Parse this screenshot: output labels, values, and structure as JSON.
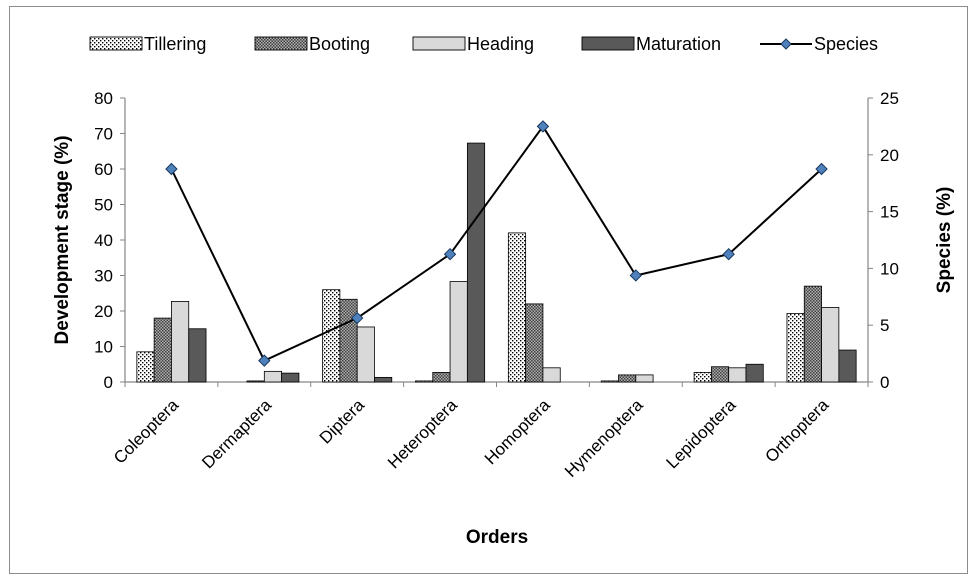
{
  "chart_data": {
    "type": "bar",
    "categories": [
      "Coleoptera",
      "Dermaptera",
      "Diptera",
      "Heteroptera",
      "Homoptera",
      "Hymenoptera",
      "Lepidoptera",
      "Orthoptera"
    ],
    "series": [
      {
        "name": "Tillering",
        "values": [
          8.5,
          0,
          26,
          0.3,
          42,
          0.3,
          2.7,
          19.3
        ],
        "fill": "dots",
        "color": "#ffffff"
      },
      {
        "name": "Booting",
        "values": [
          18,
          0.3,
          23.3,
          2.7,
          22,
          2,
          4.3,
          27
        ],
        "fill": "checker",
        "color": "#808080"
      },
      {
        "name": "Heading",
        "values": [
          22.7,
          3,
          15.5,
          28.3,
          4,
          2,
          4,
          21
        ],
        "fill": "solid",
        "color": "#d9d9d9"
      },
      {
        "name": "Maturation",
        "values": [
          15,
          2.5,
          1.3,
          67.3,
          0,
          0,
          5,
          9
        ],
        "fill": "solid",
        "color": "#595959"
      }
    ],
    "line_series": {
      "name": "Species",
      "axis": "right",
      "values": [
        18.75,
        1.88,
        5.63,
        11.25,
        22.5,
        9.38,
        11.25,
        18.75
      ],
      "marker_color": "#4f81bd",
      "line_color": "#000000"
    },
    "xlabel": "Orders",
    "ylabel": "Development stage (%)",
    "ylabel_right": "Species (%)",
    "ylim": [
      0,
      80
    ],
    "ylim_right": [
      0,
      25
    ],
    "yticks": [
      "0",
      "10",
      "20",
      "30",
      "40",
      "50",
      "60",
      "70",
      "80"
    ],
    "yticks_right": [
      "0",
      "5",
      "10",
      "15",
      "20",
      "25"
    ],
    "grid": false,
    "legend_position": "top"
  }
}
